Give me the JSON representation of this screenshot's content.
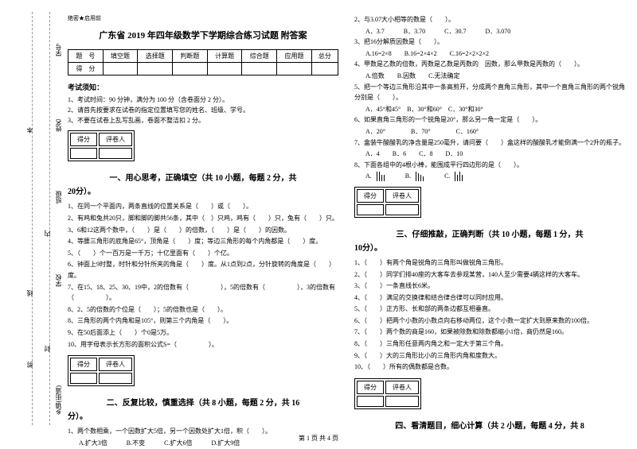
{
  "sidebar": {
    "labels": [
      "学号",
      "姓名",
      "班级",
      "学校",
      "乡镇(街道)"
    ],
    "cuts": [
      "剪",
      "线",
      "内",
      "封",
      "本"
    ]
  },
  "seal": "绝密★启用前",
  "title": "广东省 2019 年四年级数学下学期综合练习试题 附答案",
  "scoreTable": {
    "headers": [
      "题　号",
      "填空题",
      "选择题",
      "判断题",
      "计算题",
      "综合题",
      "应用题",
      "总分"
    ],
    "row2": "得　分"
  },
  "noticeHeader": "考试须知：",
  "notices": [
    "1、考试时间：90 分钟，满分为 100 分（含卷面分 2 分）。",
    "2、请首先按要求在试卷的指定位置填写您的姓名、班级、学号。",
    "3、不要在试卷上乱写乱画，卷面不整洁扣 2 分。"
  ],
  "gradeLabels": {
    "score": "得分",
    "grader": "评卷人"
  },
  "sections": {
    "s1": "一、用心思考，正确填空（共 10 小题，每题 2 分，共",
    "s1b": "20分）。",
    "s2": "二、反复比较，慎重选择（共 8 小题，每题 2 分，共 16",
    "s2b": "分）。",
    "s3": "三、仔细推敲，正确判断（共 10 小题，每题 1 分，共",
    "s3b": "10分）。",
    "s4": "四、看清题目，细心计算（共 2 小题，每题 4 分，共 8"
  },
  "col1q": [
    "1、在同一个平面内，两条直线的位置关系是（　　）或（　　）。",
    "2、有鸡和兔共20只，脚和脚的脚共56条，其中（　）只鸡，鸡有（　　）只，兔有（　　）只。",
    "3、6和12这两个数中，（　　）是（　　）的倍数，（　　）是（　　）的因数。",
    "4、等腰三角形的底角是65°，顶角是（　　）度；等边三角形的每个内角都是（　　）度。",
    "5、（　　）个一百万是一千万；十亿里面有（　　）个亿。",
    "6、钟面上9时整，时针和分针所夹的角是（　　）度。从1点到2点，分针旋转的角度是（　　）度。",
    "7、在15、18、25、30、19中，2的倍数有（　　　　　），5的倍数有（　　　　　），3的倍数有（　　　　　）。",
    "8、2、5的倍数的个位是（　　）；5的倍数也是（　　）。",
    "8、三角形的两个内角和是105°，则第三个内角是（　　）。",
    "9、在50后面添上（　　）个0是5万。",
    "10、用字母表示长方形的面积公式S=（　　　　　）。"
  ],
  "col1sel": {
    "q1": "1、两个数相乘，一个因数扩大5倍，另一个因数处扩大1倍，积（　　）。",
    "q1opts": "A.扩大3倍　　　B.不变　　　C.扩大6倍　　　D.扩大9倍"
  },
  "col2sel": [
    {
      "q": "2、与3.07大小相等的数是（　　）。",
      "o": "A．3.7　　　B．3.70　　　C．30.7　　　D．3.070"
    },
    {
      "q": "3、把16分解质因数是（　　）。",
      "o": "A.16=2×8　　B.16=2×4×2　　C.16=2×2×2×2"
    },
    {
      "q": "4、甲数是乙数的倍数，丙数是乙数是丙数的　因数，那么甲数是丙数的（　　）。",
      "o": "A.倍数　　B.因数　　C.无法确定"
    },
    {
      "q": "5、把一个等边三角形沿其中一条高剪开，分成两个直角三角形，其中一个直角三角形的两个锐角分别是（　　）。",
      "o": "A．45°和45°　B．30°和60°　C．30°和30°"
    },
    {
      "q": "6、如果直角三角形的一个锐角是20°，那么另一角一定是（　　）。",
      "o": "A．20°　　　　B．70°　　　　C．160°"
    },
    {
      "q": "7、盒装牛酸酸乳的净含量是250毫升，请问要（　　）盒这样的酸酸乳才能倒满一个2升的瓶子。",
      "o": "A．4　　B．6　　C．8　　D．10"
    },
    {
      "q": "8、下面各组中的4根小棒，能围成平行四边形的是（　　）。",
      "o": ""
    }
  ],
  "barsOpts": [
    "A.",
    "B.",
    "C."
  ],
  "col2judge": [
    "1、（　　）有两个角是锐角的三角形叫做锐角三角形。",
    "2、（　　）同学们排40座的大客车去参观某营，140人至少需要4辆这样的大客车。",
    "3、（　　）一条直线长6米。",
    "4、（　　）满足的交换律和结合律合律可以同时应用。",
    "5、（　　）正方形、长和部的两条边都互相垂直。",
    "6、（　　）把两个小数的小数点向右移动两位，这个小数一定扩大到原来数的100倍。",
    "7、（　　）两个数的商是160，如果被除数和除数都缩小1倍，商仍然是160。",
    "8、（　　）三角形任意两内角之和一定大于第三个角。",
    "9、（　　）大的三角形比小的三角形内角和度数大。",
    "10、（　　）所有的偶数都是合数。"
  ],
  "footer": "第 1 页 共 4 页"
}
